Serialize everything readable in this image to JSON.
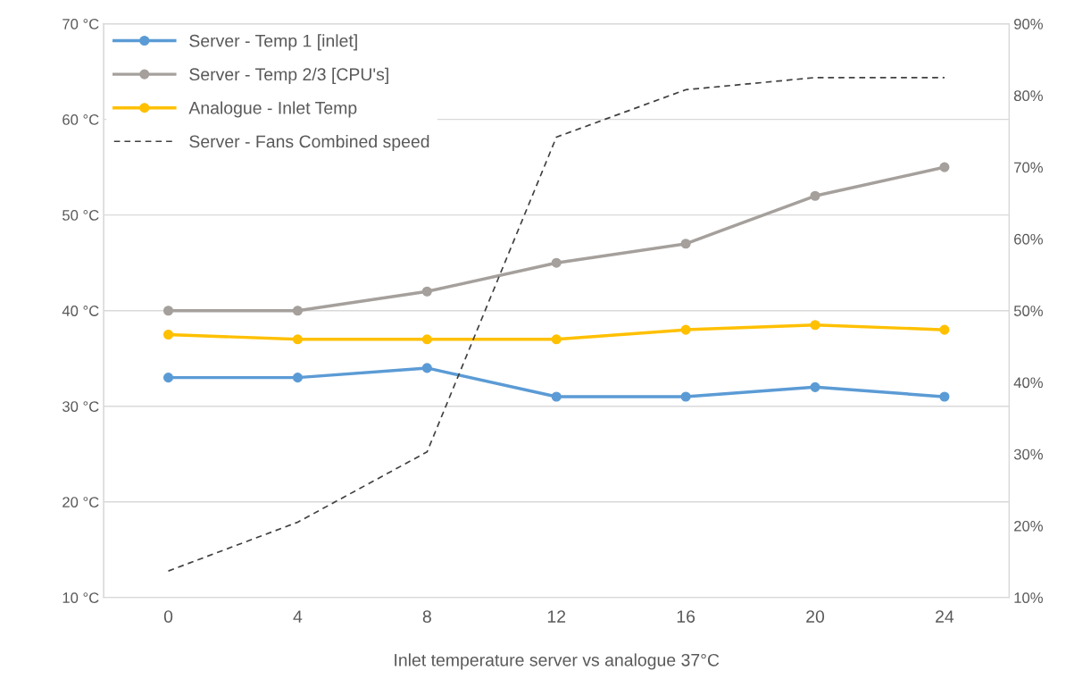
{
  "chart_data": {
    "type": "line",
    "xlabel": "Inlet temperature server vs analogue 37°C",
    "categories": [
      "0",
      "4",
      "8",
      "12",
      "16",
      "20",
      "24"
    ],
    "series": [
      {
        "name": "Server - Temp 1 [inlet]",
        "color": "#5b9bd5",
        "values": [
          33,
          33,
          34,
          31,
          31,
          32,
          31
        ],
        "marker": "circle",
        "line_style": "solid"
      },
      {
        "name": "Server - Temp 2/3 [CPU's]",
        "color": "#a5a09c",
        "values": [
          40,
          40,
          42,
          45,
          47,
          52,
          55
        ],
        "marker": "circle",
        "line_style": "solid"
      },
      {
        "name": "Analogue - Inlet Temp",
        "color": "#ffc000",
        "values": [
          37.5,
          37,
          37,
          37,
          38,
          38.5,
          38
        ],
        "marker": "circle",
        "line_style": "solid"
      },
      {
        "name": "Server - Fans Combined speed",
        "color": "#404040",
        "values": [
          13.7,
          20.5,
          30.3,
          74.2,
          80.8,
          82.5,
          82.5
        ],
        "axis": "y2",
        "marker": "none",
        "line_style": "dashed"
      }
    ],
    "ylim": [
      10,
      70
    ],
    "yticks": [
      {
        "value": 10,
        "label": "10 °C"
      },
      {
        "value": 20,
        "label": "20 °C"
      },
      {
        "value": 30,
        "label": "30 °C"
      },
      {
        "value": 40,
        "label": "40 °C"
      },
      {
        "value": 50,
        "label": "50 °C"
      },
      {
        "value": 60,
        "label": "60 °C"
      },
      {
        "value": 70,
        "label": "70 °C"
      }
    ],
    "y2lim": [
      10,
      90
    ],
    "y2ticks": [
      {
        "value": 10,
        "label": "10%"
      },
      {
        "value": 20,
        "label": "20%"
      },
      {
        "value": 30,
        "label": "30%"
      },
      {
        "value": 40,
        "label": "40%"
      },
      {
        "value": 50,
        "label": "50%"
      },
      {
        "value": 60,
        "label": "60%"
      },
      {
        "value": 70,
        "label": "70%"
      },
      {
        "value": 80,
        "label": "80%"
      },
      {
        "value": 90,
        "label": "90%"
      }
    ],
    "grid": "y",
    "legend": "top left"
  }
}
